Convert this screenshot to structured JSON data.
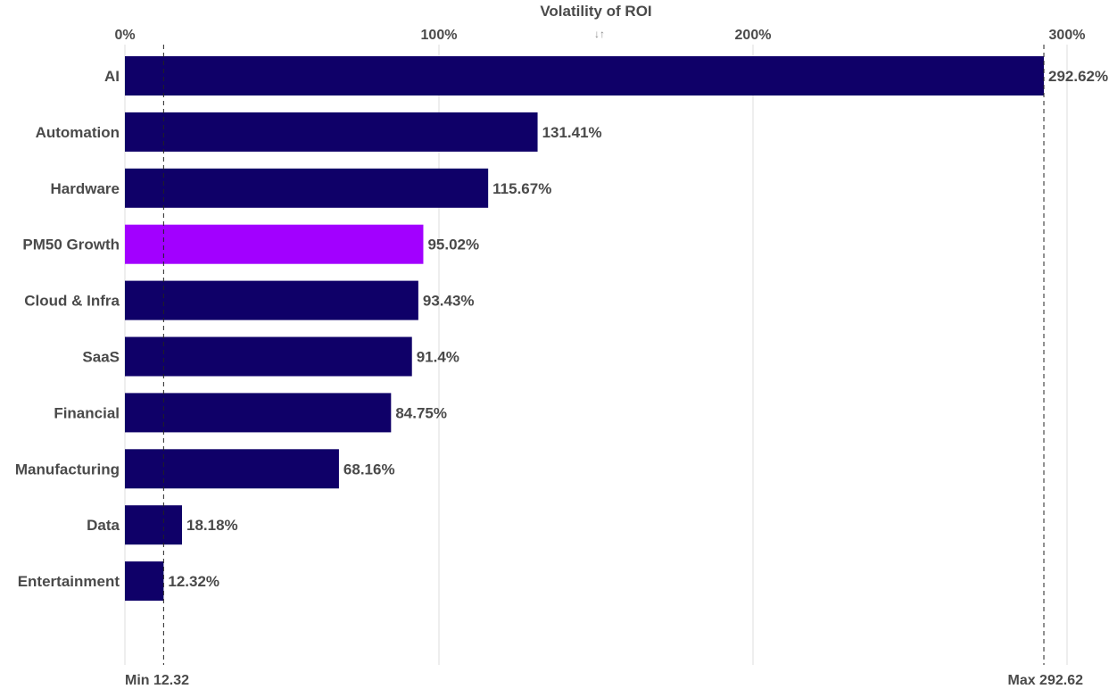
{
  "chart_data": {
    "type": "bar",
    "orientation": "horizontal",
    "title": "",
    "xlabel": "Volatility of ROI",
    "ylabel": "",
    "xlim": [
      0,
      300
    ],
    "x_ticks": [
      {
        "value": 0,
        "label": "0%"
      },
      {
        "value": 100,
        "label": "100%"
      },
      {
        "value": 200,
        "label": "200%"
      },
      {
        "value": 300,
        "label": "300%"
      }
    ],
    "grid": true,
    "legend": "none",
    "sort_icon": "sort-arrows-icon",
    "sort_glyph": "↓↑",
    "categories": [
      "AI",
      "Automation",
      "Hardware",
      "PM50 Growth",
      "Cloud & Infra",
      "SaaS",
      "Financial",
      "Manufacturing",
      "Data",
      "Entertainment"
    ],
    "values": [
      292.62,
      131.41,
      115.67,
      95.02,
      93.43,
      91.4,
      84.75,
      68.16,
      18.18,
      12.32
    ],
    "value_labels": [
      "292.62%",
      "131.41%",
      "115.67%",
      "95.02%",
      "93.43%",
      "91.4%",
      "84.75%",
      "68.16%",
      "18.18%",
      "12.32%"
    ],
    "highlight_category": "PM50 Growth",
    "colors": {
      "bar": "#0f0068",
      "highlight": "#a200ff"
    },
    "reference_lines": [
      {
        "value": 12.32,
        "label": "Min 12.32"
      },
      {
        "value": 292.62,
        "label": "Max 292.62"
      }
    ]
  }
}
